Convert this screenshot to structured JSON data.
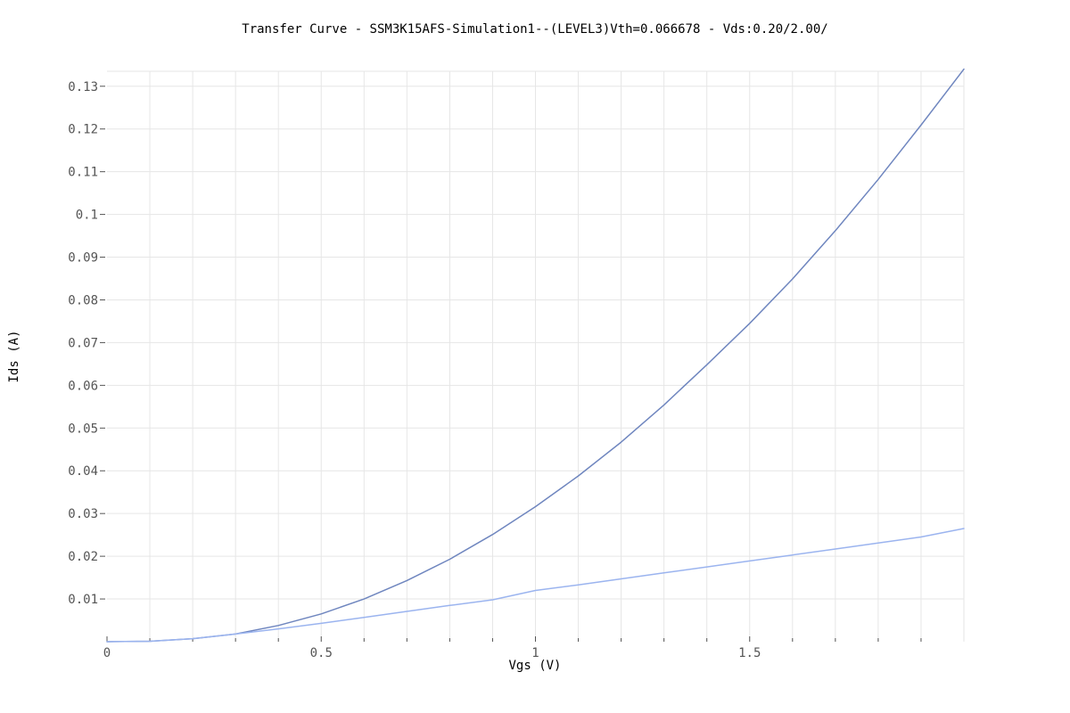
{
  "chart_data": {
    "type": "line",
    "title": "Transfer Curve - SSM3K15AFS-Simulation1--(LEVEL3)Vth=0.066678 - Vds:0.20/2.00/",
    "xlabel": "Vgs (V)",
    "ylabel": "Ids (A)",
    "xlim": [
      0,
      2.0
    ],
    "ylim": [
      0,
      0.1335
    ],
    "x_ticks": [
      0,
      0.5,
      1,
      1.5
    ],
    "x_minor_ticks": [
      0.1,
      0.2,
      0.3,
      0.4,
      0.6,
      0.7,
      0.8,
      0.9,
      1.1,
      1.2,
      1.3,
      1.4,
      1.6,
      1.7,
      1.8,
      1.9
    ],
    "y_ticks": [
      0.01,
      0.02,
      0.03,
      0.04,
      0.05,
      0.06,
      0.07,
      0.08,
      0.09,
      0.1,
      0.11,
      0.12,
      0.13
    ],
    "grid": true,
    "x": [
      0,
      0.1,
      0.2,
      0.3,
      0.4,
      0.5,
      0.6,
      0.7,
      0.8,
      0.9,
      1.0,
      1.1,
      1.2,
      1.3,
      1.4,
      1.5,
      1.6,
      1.7,
      1.8,
      1.9,
      2.0
    ],
    "series": [
      {
        "color": "#6f86bf",
        "values": [
          0,
          0.0001,
          0.0007,
          0.0018,
          0.0038,
          0.0065,
          0.01,
          0.0143,
          0.0193,
          0.0251,
          0.0316,
          0.0388,
          0.0467,
          0.0554,
          0.0648,
          0.0745,
          0.0849,
          0.0962,
          0.1082,
          0.1209,
          0.134
        ]
      },
      {
        "color": "#9bb4ef",
        "values": [
          0,
          0.0001,
          0.0007,
          0.0018,
          0.003,
          0.0043,
          0.0057,
          0.0071,
          0.0085,
          0.0098,
          0.012,
          0.0133,
          0.0147,
          0.0161,
          0.0175,
          0.0189,
          0.0203,
          0.0217,
          0.0231,
          0.0245,
          0.0265
        ]
      }
    ],
    "colors": {
      "grid": "#e6e6e6",
      "tick_text": "#555555",
      "title_text": "#000000"
    }
  }
}
